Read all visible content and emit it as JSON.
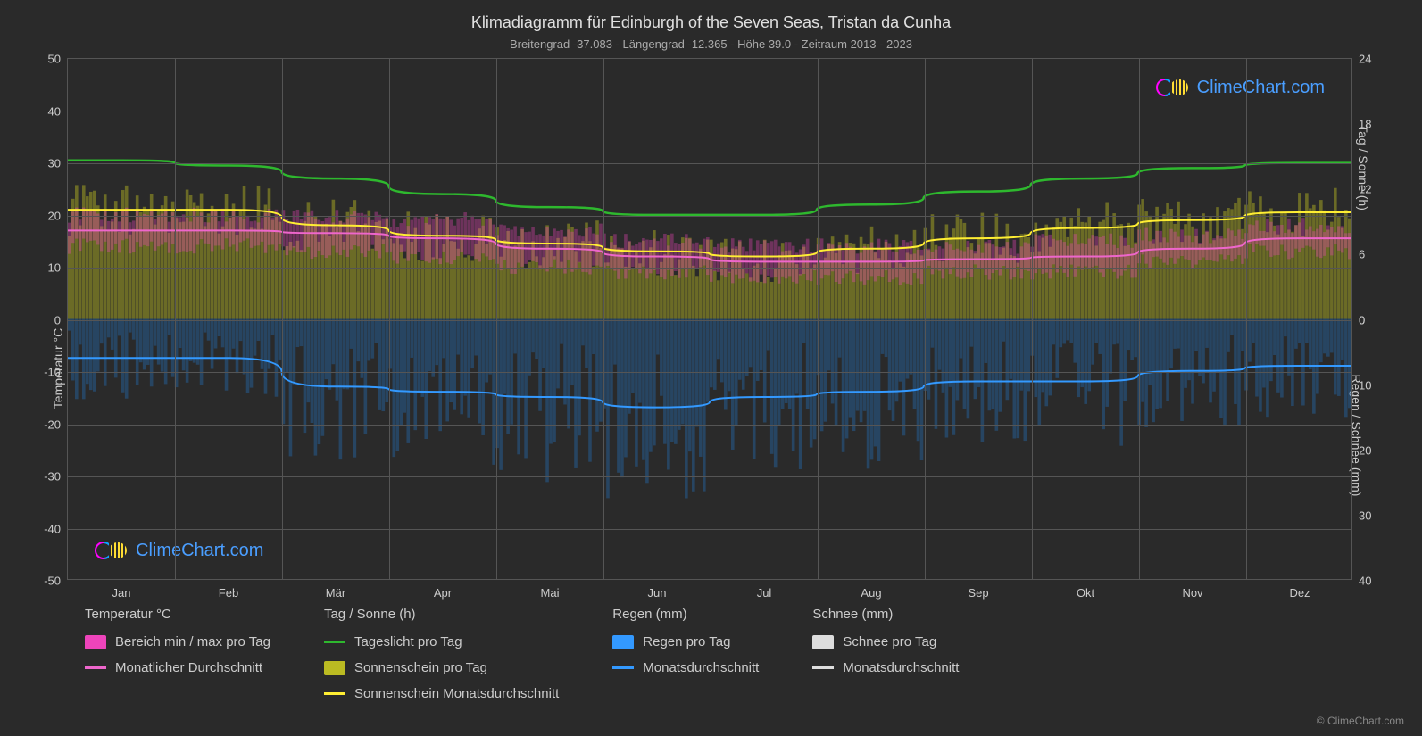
{
  "title": "Klimadiagramm für Edinburgh of the Seven Seas,  Tristan da Cunha",
  "subtitle": "Breitengrad -37.083 - Längengrad -12.365 - Höhe 39.0 - Zeitraum 2013 - 2023",
  "watermark_text": "ClimeChart.com",
  "copyright": "© ClimeChart.com",
  "background_color": "#2a2a2a",
  "grid_color": "#555555",
  "text_color": "#cccccc",
  "axis_left_title": "Temperatur °C",
  "axis_right_top_title": "Tag / Sonne (h)",
  "axis_right_bottom_title": "Regen / Schnee (mm)",
  "months": [
    "Jan",
    "Feb",
    "Mär",
    "Apr",
    "Mai",
    "Jun",
    "Jul",
    "Aug",
    "Sep",
    "Okt",
    "Nov",
    "Dez"
  ],
  "y_left": {
    "min": -50,
    "max": 50,
    "step": 10,
    "ticks": [
      50,
      40,
      30,
      20,
      10,
      0,
      -10,
      -20,
      -30,
      -40,
      -50
    ]
  },
  "y_right_top": {
    "min": 0,
    "max": 24,
    "step": 6,
    "ticks": [
      24,
      18,
      12,
      6,
      0
    ]
  },
  "y_right_bottom": {
    "min": 0,
    "max": 40,
    "step": 10,
    "ticks": [
      0,
      10,
      20,
      30,
      40
    ]
  },
  "series": {
    "daylight": {
      "color": "#2eb82e",
      "width": 2.5,
      "values": [
        30.5,
        29.5,
        27,
        24,
        21.5,
        20,
        20,
        22,
        24.5,
        27,
        29,
        30
      ]
    },
    "sunshine_avg": {
      "color": "#ffee33",
      "width": 2,
      "values": [
        21,
        21,
        18,
        16,
        14.5,
        13,
        12,
        13.5,
        15.5,
        17.5,
        19,
        20.5
      ]
    },
    "temp_avg": {
      "color": "#ee66cc",
      "width": 2,
      "values": [
        17,
        17,
        16.5,
        15.5,
        13.5,
        12,
        11,
        11,
        11.5,
        12,
        13.5,
        15.5
      ]
    },
    "rain_avg": {
      "color": "#3399ff",
      "width": 2,
      "values": [
        -7.5,
        -7.5,
        -13,
        -14,
        -15,
        -17,
        -15,
        -14,
        -12,
        -12,
        -10,
        -9
      ]
    },
    "sunshine_bars": {
      "color": "#bbbb22",
      "opacity": 0.45
    },
    "temp_range": {
      "color": "#ee44bb",
      "opacity": 0.35,
      "min": [
        14,
        14,
        13,
        12,
        10,
        9,
        8,
        8,
        9,
        9,
        11,
        13
      ],
      "max": [
        20,
        20,
        20,
        19,
        17,
        15,
        14,
        14,
        14,
        15,
        16,
        18
      ]
    },
    "rain_bars": {
      "color": "#2277cc",
      "opacity": 0.35
    }
  },
  "legend": {
    "temp": {
      "header": "Temperatur °C",
      "items": [
        {
          "type": "swatch",
          "color": "#ee44bb",
          "label": "Bereich min / max pro Tag"
        },
        {
          "type": "line",
          "color": "#ee66cc",
          "label": "Monatlicher Durchschnitt"
        }
      ]
    },
    "daylight": {
      "header": "Tag / Sonne (h)",
      "items": [
        {
          "type": "line",
          "color": "#2eb82e",
          "label": "Tageslicht pro Tag"
        },
        {
          "type": "swatch",
          "color": "#bbbb22",
          "label": "Sonnenschein pro Tag"
        },
        {
          "type": "line",
          "color": "#ffee33",
          "label": "Sonnenschein Monatsdurchschnitt"
        }
      ]
    },
    "rain": {
      "header": "Regen (mm)",
      "items": [
        {
          "type": "swatch",
          "color": "#3399ff",
          "label": "Regen pro Tag"
        },
        {
          "type": "line",
          "color": "#3399ff",
          "label": "Monatsdurchschnitt"
        }
      ]
    },
    "snow": {
      "header": "Schnee (mm)",
      "items": [
        {
          "type": "swatch",
          "color": "#dddddd",
          "label": "Schnee pro Tag"
        },
        {
          "type": "line",
          "color": "#dddddd",
          "label": "Monatsdurchschnitt"
        }
      ]
    }
  }
}
